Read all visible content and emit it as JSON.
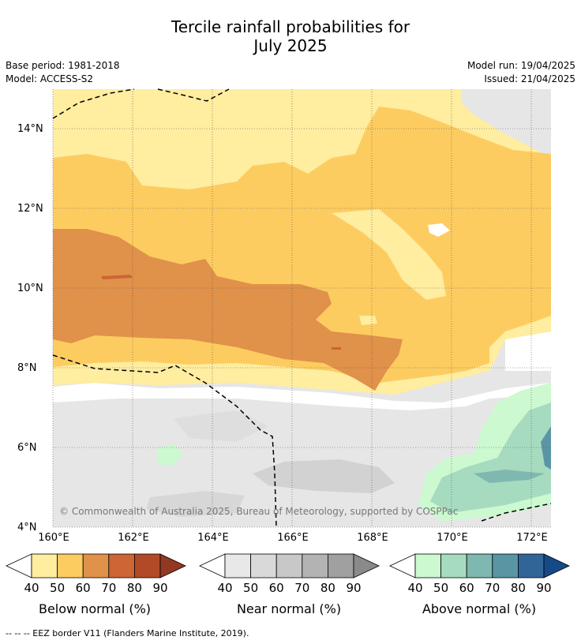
{
  "title_line1": "Tercile rainfall probabilities for",
  "title_line2": "July 2025",
  "base_period": "Base period: 1981-2018",
  "model": "Model: ACCESS-S2",
  "model_run": "Model run: 19/04/2025",
  "issued": "Issued: 21/04/2025",
  "copyright": "© Commonwealth of Australia 2025, Bureau of Meteorology, supported by COSPPac",
  "footnote": "-- -- -- EEZ border V11 (Flanders Marine Institute, 2019).",
  "y_ticks": [
    "14°N",
    "12°N",
    "10°N",
    "8°N",
    "6°N",
    "4°N"
  ],
  "x_ticks": [
    "160°E",
    "162°E",
    "164°E",
    "166°E",
    "168°E",
    "170°E",
    "172°E"
  ],
  "legends": [
    {
      "label": "Below normal (%)",
      "ticks": [
        "40",
        "50",
        "60",
        "70",
        "80",
        "90"
      ],
      "colors": [
        "#ffeda0",
        "#fdcc60",
        "#e0914a",
        "#cd6535",
        "#b24a28",
        "#933822"
      ]
    },
    {
      "label": "Near normal (%)",
      "ticks": [
        "40",
        "50",
        "60",
        "70",
        "80",
        "90"
      ],
      "colors": [
        "#e8e8e8",
        "#d9d9d9",
        "#c8c8c8",
        "#b3b3b3",
        "#a0a0a0",
        "#8a8a8a"
      ]
    },
    {
      "label": "Above normal (%)",
      "ticks": [
        "40",
        "50",
        "60",
        "70",
        "80",
        "90"
      ],
      "colors": [
        "#ccf9cf",
        "#a6dbc0",
        "#7fb8b0",
        "#5a95a4",
        "#326597",
        "#154a86"
      ]
    }
  ]
}
